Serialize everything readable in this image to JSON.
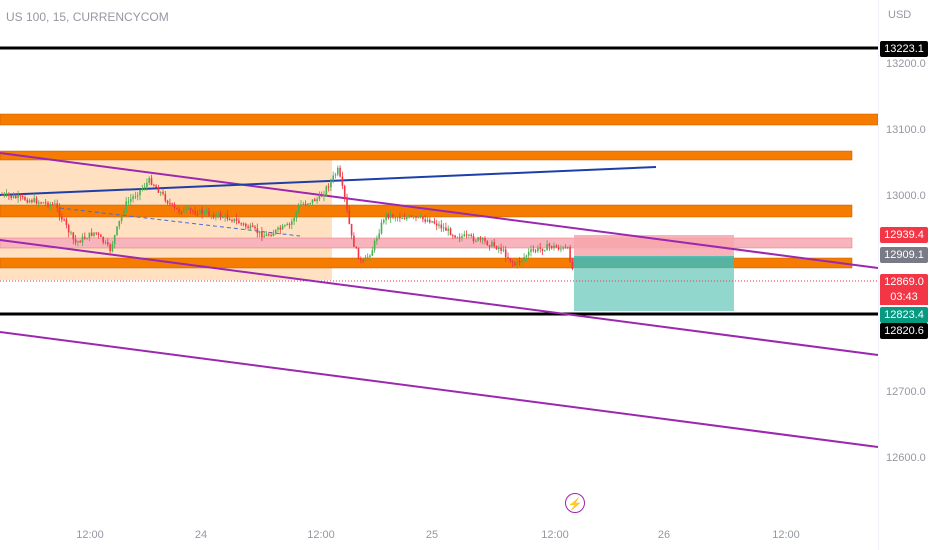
{
  "header": {
    "symbol_title": "US 100, 15, CURRENCYCOM",
    "currency": "USD"
  },
  "price_axis": {
    "ticks": [
      "13200.0",
      "13100.0",
      "13000.0",
      "12700.0",
      "12600.0"
    ]
  },
  "time_axis": {
    "ticks": [
      "12:00",
      "24",
      "12:00",
      "25",
      "12:00",
      "26",
      "12:00"
    ]
  },
  "badges": {
    "upper_line": "13223.1",
    "stop": "12939.4",
    "entry": "12909.1",
    "last_price": "12869.0",
    "countdown": "03:43",
    "target": "12823.4",
    "lower_line": "12820.6"
  },
  "colors": {
    "zone": "#f57c00",
    "zone_light": "#ffd8b0",
    "channel": "#9c27b0",
    "trendline": "#1e3fa8",
    "up": "#26a69a",
    "down": "#ef5350",
    "candle_up": "#4caf50",
    "candle_down": "#f23645",
    "stop_zone": "#f7a6ad",
    "target_zone": "#7fd0c4",
    "key_line": "#000000"
  },
  "icons": {
    "event": "lightning-icon"
  }
}
